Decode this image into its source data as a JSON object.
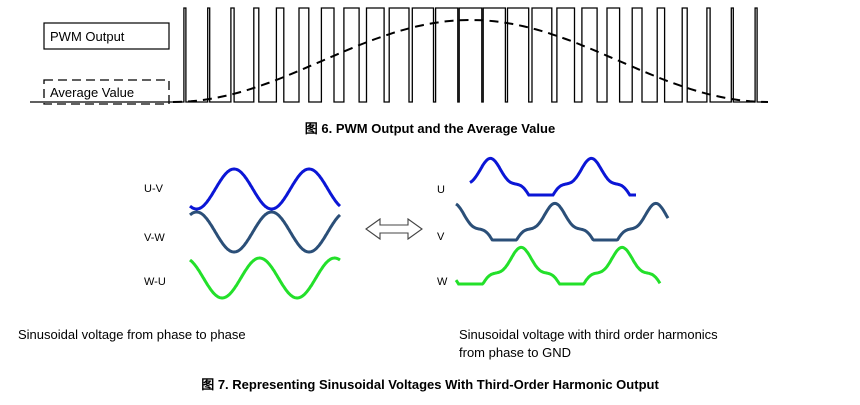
{
  "figure6": {
    "pwm_legend_label": "PWM Output",
    "avg_legend_label": "Average Value",
    "caption": "图 6.  PWM Output and the Average Value"
  },
  "figure7": {
    "left_labels": [
      "U-V",
      "V-W",
      "W-U"
    ],
    "right_labels": [
      "U",
      "V",
      "W"
    ],
    "left_description": "Sinusoidal voltage from phase to phase",
    "right_description_line1": "Sinusoidal voltage with third order harmonics",
    "right_description_line2": "from phase to GND",
    "caption": "图 7.  Representing Sinusoidal Voltages With Third-Order Harmonic Output"
  },
  "colors": {
    "uv": "#0b16d6",
    "vw": "#2b4f78",
    "wu": "#23e02a",
    "ink": "#000000",
    "arrow_stroke": "#444444"
  }
}
